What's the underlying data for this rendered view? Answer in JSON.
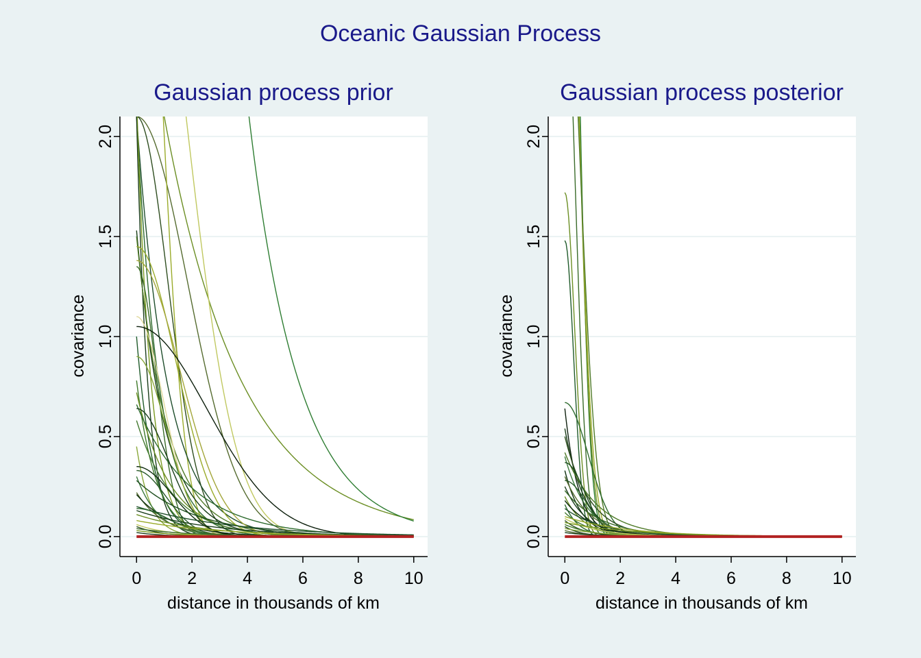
{
  "figure": {
    "title": "Oceanic Gaussian Process"
  },
  "chart_data": [
    {
      "type": "line",
      "title": "Gaussian process prior",
      "xlabel": "distance in thousands of km",
      "ylabel": "covariance",
      "xlim": [
        -0.6,
        10.5
      ],
      "ylim": [
        -0.1,
        2.1
      ],
      "xticks": [
        "0",
        "2",
        "4",
        "6",
        "8",
        "10"
      ],
      "yticks": [
        "0.0",
        "0.5",
        "1.0",
        "1.5",
        "2.0"
      ],
      "grid": true,
      "x_range": [
        0,
        10
      ],
      "reference_line": {
        "value": 0,
        "color": "#b22222"
      },
      "curves": [
        {
          "a": 2.1,
          "r": 2.6,
          "k": 2,
          "color": "#556b2f"
        },
        {
          "a": 2.1,
          "r": 1.6,
          "k": 2,
          "color": "#2e4d1f"
        },
        {
          "a": 3.0,
          "r": 2.8,
          "k": 1,
          "color": "#6b8e23"
        },
        {
          "a": 4.0,
          "r": 1.2,
          "k": 2,
          "color": "#9aab2a"
        },
        {
          "a": 3.5,
          "r": 2.5,
          "k": 2,
          "color": "#c0c860"
        },
        {
          "a": 20.0,
          "r": 1.8,
          "k": 1,
          "color": "#2e7d32"
        },
        {
          "a": 2.1,
          "r": 1.1,
          "k": 1,
          "color": "#1e4d2b"
        },
        {
          "a": 2.1,
          "r": 0.8,
          "k": 1,
          "color": "#2d6a2d"
        },
        {
          "a": 2.2,
          "r": 0.5,
          "k": 1,
          "color": "#7a9a20"
        },
        {
          "a": 2.1,
          "r": 0.4,
          "k": 1,
          "color": "#1b3d1b"
        },
        {
          "a": 1.53,
          "r": 1.0,
          "k": 1,
          "color": "#173d17"
        },
        {
          "a": 1.5,
          "r": 1.1,
          "k": 1,
          "color": "#4f7a28"
        },
        {
          "a": 1.45,
          "r": 2.0,
          "k": 2,
          "color": "#9aab2a"
        },
        {
          "a": 1.38,
          "r": 2.2,
          "k": 2,
          "color": "#a3a63a"
        },
        {
          "a": 1.35,
          "r": 1.0,
          "k": 2,
          "color": "#3a6b2a"
        },
        {
          "a": 1.1,
          "r": 1.4,
          "k": 2,
          "color": "#e0d89a"
        },
        {
          "a": 1.05,
          "r": 3.6,
          "k": 2,
          "color": "#0d1f0d"
        },
        {
          "a": 1.0,
          "r": 0.6,
          "k": 1,
          "color": "#1f5a2a"
        },
        {
          "a": 0.9,
          "r": 1.5,
          "k": 2,
          "color": "#8aa83a"
        },
        {
          "a": 0.78,
          "r": 0.7,
          "k": 1,
          "color": "#3f7a2a"
        },
        {
          "a": 0.72,
          "r": 1.2,
          "k": 1,
          "color": "#6b8e23"
        },
        {
          "a": 0.66,
          "r": 2.0,
          "k": 1,
          "color": "#2e6b2e"
        },
        {
          "a": 0.64,
          "r": 1.6,
          "k": 2,
          "color": "#1a3d1a"
        },
        {
          "a": 0.58,
          "r": 1.3,
          "k": 1,
          "color": "#447a30"
        },
        {
          "a": 0.45,
          "r": 0.5,
          "k": 1,
          "color": "#8aa83a"
        },
        {
          "a": 0.35,
          "r": 1.8,
          "k": 2,
          "color": "#0d2a0d"
        },
        {
          "a": 0.33,
          "r": 1.5,
          "k": 2,
          "color": "#2a5a2a"
        },
        {
          "a": 0.3,
          "r": 0.8,
          "k": 1,
          "color": "#3d7a3d"
        },
        {
          "a": 0.28,
          "r": 2.2,
          "k": 1,
          "color": "#1f4f1f"
        },
        {
          "a": 0.22,
          "r": 1.0,
          "k": 1,
          "color": "#556b2f"
        },
        {
          "a": 0.21,
          "r": 1.3,
          "k": 1,
          "color": "#0f300f"
        },
        {
          "a": 0.15,
          "r": 3.5,
          "k": 1,
          "color": "#1f4f2a"
        },
        {
          "a": 0.14,
          "r": 1.7,
          "k": 2,
          "color": "#2e6b2e"
        },
        {
          "a": 0.13,
          "r": 2.8,
          "k": 1,
          "color": "#1a3d1a"
        },
        {
          "a": 0.11,
          "r": 2.4,
          "k": 1,
          "color": "#6b8e23"
        },
        {
          "a": 0.08,
          "r": 3.0,
          "k": 1,
          "color": "#9aab2a"
        },
        {
          "a": 0.06,
          "r": 1.2,
          "k": 1,
          "color": "#c0c860"
        },
        {
          "a": 0.05,
          "r": 0.9,
          "k": 1,
          "color": "#2e4d1f"
        },
        {
          "a": 0.04,
          "r": 2.0,
          "k": 1,
          "color": "#3a6b2a"
        },
        {
          "a": 0.03,
          "r": 1.5,
          "k": 1,
          "color": "#7a9a20"
        },
        {
          "a": 0.02,
          "r": 1.0,
          "k": 1,
          "color": "#1b3d1b"
        }
      ]
    },
    {
      "type": "line",
      "title": "Gaussian process posterior",
      "xlabel": "distance in thousands of km",
      "ylabel": "covariance",
      "xlim": [
        -0.6,
        10.5
      ],
      "ylim": [
        -0.1,
        2.1
      ],
      "xticks": [
        "0",
        "2",
        "4",
        "6",
        "8",
        "10"
      ],
      "yticks": [
        "0.0",
        "0.5",
        "1.0",
        "1.5",
        "2.0"
      ],
      "grid": true,
      "x_range": [
        0,
        10
      ],
      "reference_line": {
        "value": 0,
        "color": "#b22222"
      },
      "curves": [
        {
          "a": 5.0,
          "r": 0.6,
          "k": 2,
          "color": "#2e7d32"
        },
        {
          "a": 4.0,
          "r": 0.65,
          "k": 2,
          "color": "#6b8e23"
        },
        {
          "a": 3.6,
          "r": 0.7,
          "k": 2,
          "color": "#9aab2a"
        },
        {
          "a": 3.0,
          "r": 0.8,
          "k": 2,
          "color": "#4f7a28"
        },
        {
          "a": 2.8,
          "r": 0.55,
          "k": 2,
          "color": "#3a6b2a"
        },
        {
          "a": 1.72,
          "r": 0.5,
          "k": 2,
          "color": "#6b8e23"
        },
        {
          "a": 1.48,
          "r": 0.45,
          "k": 2,
          "color": "#1f5a2a"
        },
        {
          "a": 0.67,
          "r": 1.2,
          "k": 2,
          "color": "#2e6b2e"
        },
        {
          "a": 0.64,
          "r": 0.5,
          "k": 1,
          "color": "#0d1f0d"
        },
        {
          "a": 0.54,
          "r": 0.7,
          "k": 1,
          "color": "#1a3d1a"
        },
        {
          "a": 0.5,
          "r": 0.9,
          "k": 1,
          "color": "#2e4d1f"
        },
        {
          "a": 0.42,
          "r": 1.2,
          "k": 1,
          "color": "#4f7a28"
        },
        {
          "a": 0.4,
          "r": 0.8,
          "k": 1,
          "color": "#3d7a3d"
        },
        {
          "a": 0.37,
          "r": 1.0,
          "k": 2,
          "color": "#1f4f1f"
        },
        {
          "a": 0.33,
          "r": 0.6,
          "k": 1,
          "color": "#0f300f"
        },
        {
          "a": 0.3,
          "r": 0.9,
          "k": 1,
          "color": "#556b2f"
        },
        {
          "a": 0.28,
          "r": 1.1,
          "k": 2,
          "color": "#2a5a2a"
        },
        {
          "a": 0.25,
          "r": 0.8,
          "k": 1,
          "color": "#1b3d1b"
        },
        {
          "a": 0.23,
          "r": 1.3,
          "k": 1,
          "color": "#3a6b2a"
        },
        {
          "a": 0.2,
          "r": 0.7,
          "k": 1,
          "color": "#6b8e23"
        },
        {
          "a": 0.18,
          "r": 1.0,
          "k": 1,
          "color": "#0d2a0d"
        },
        {
          "a": 0.16,
          "r": 0.5,
          "k": 1,
          "color": "#2e6b2e"
        },
        {
          "a": 0.14,
          "r": 1.4,
          "k": 1,
          "color": "#1f4f2a"
        },
        {
          "a": 0.12,
          "r": 0.9,
          "k": 1,
          "color": "#447a30"
        },
        {
          "a": 0.1,
          "r": 2.2,
          "k": 1,
          "color": "#9aab2a"
        },
        {
          "a": 0.09,
          "r": 1.2,
          "k": 1,
          "color": "#c0c860"
        },
        {
          "a": 0.08,
          "r": 0.7,
          "k": 1,
          "color": "#2e4d1f"
        },
        {
          "a": 0.07,
          "r": 2.5,
          "k": 1,
          "color": "#7a9a20"
        },
        {
          "a": 0.06,
          "r": 1.0,
          "k": 1,
          "color": "#3f7a2a"
        },
        {
          "a": 0.05,
          "r": 0.6,
          "k": 1,
          "color": "#1a3d1a"
        },
        {
          "a": 0.04,
          "r": 1.5,
          "k": 1,
          "color": "#8aa83a"
        },
        {
          "a": 0.03,
          "r": 0.8,
          "k": 1,
          "color": "#556b2f"
        },
        {
          "a": 0.02,
          "r": 1.1,
          "k": 1,
          "color": "#1b3d1b"
        }
      ]
    }
  ]
}
